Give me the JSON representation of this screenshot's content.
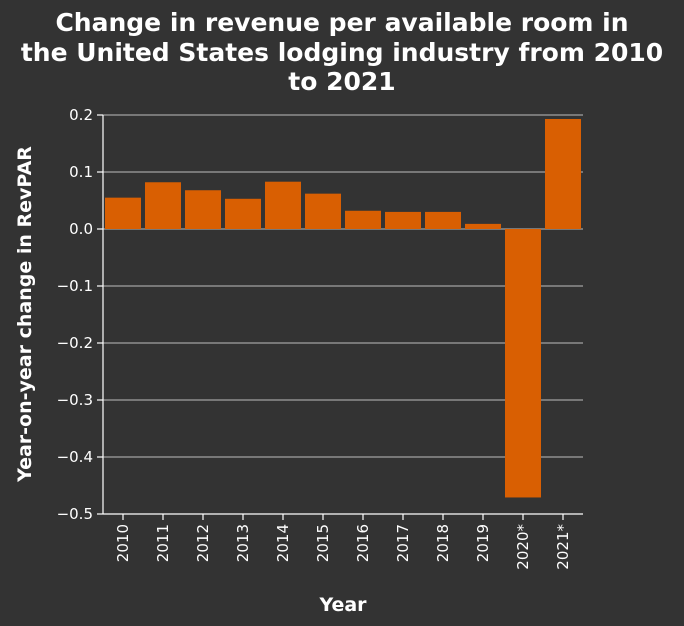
{
  "chart_data": {
    "type": "bar",
    "title_lines": [
      "Change in revenue per available room in",
      "the United States lodging industry from 2010",
      "to 2021"
    ],
    "xlabel": "Year",
    "ylabel": "Year-on-year change in RevPAR",
    "categories": [
      "2010",
      "2011",
      "2012",
      "2013",
      "2014",
      "2015",
      "2016",
      "2017",
      "2018",
      "2019",
      "2020*",
      "2021*"
    ],
    "values": [
      0.055,
      0.082,
      0.068,
      0.053,
      0.083,
      0.062,
      0.032,
      0.03,
      0.03,
      0.009,
      -0.471,
      0.193
    ],
    "ylim": [
      -0.5,
      0.2
    ],
    "yticks": [
      0.2,
      0.1,
      0.0,
      -0.1,
      -0.2,
      -0.3,
      -0.4,
      -0.5
    ],
    "ytick_labels": [
      "0.2",
      "0.1",
      "0.0",
      "−0.1",
      "−0.2",
      "−0.3",
      "−0.4",
      "−0.5"
    ],
    "grid": true,
    "bar_color": "#d95f02",
    "background_color": "#333333"
  }
}
